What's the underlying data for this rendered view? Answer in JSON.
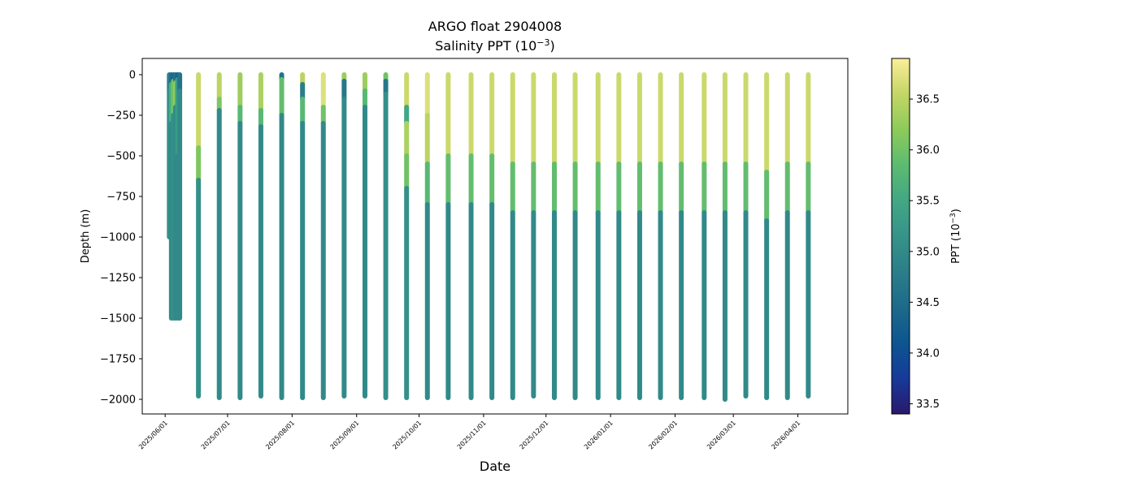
{
  "chart_data": {
    "type": "scatter",
    "title": "ARGO float 2904008",
    "subtitle_main": "Salinity PPT (10",
    "subtitle_exp": "−3",
    "subtitle_end": ")",
    "xlabel": "Date",
    "ylabel": "Depth (m)",
    "x_start": "2025-05-21",
    "x_end": "2026-04-25",
    "ylim": [
      -2090,
      100
    ],
    "x_ticks": [
      {
        "date": "2025-06-01",
        "label": "2025/06/01"
      },
      {
        "date": "2025-07-01",
        "label": "2025/07/01"
      },
      {
        "date": "2025-08-01",
        "label": "2025/08/01"
      },
      {
        "date": "2025-09-01",
        "label": "2025/09/01"
      },
      {
        "date": "2025-10-01",
        "label": "2025/10/01"
      },
      {
        "date": "2025-11-01",
        "label": "2025/11/01"
      },
      {
        "date": "2025-12-01",
        "label": "2025/12/01"
      },
      {
        "date": "2026-01-01",
        "label": "2026/01/01"
      },
      {
        "date": "2026-02-01",
        "label": "2026/02/01"
      },
      {
        "date": "2026-03-01",
        "label": "2026/03/01"
      },
      {
        "date": "2026-04-01",
        "label": "2026/04/01"
      }
    ],
    "y_ticks": [
      {
        "value": 0,
        "label": "0"
      },
      {
        "value": -250,
        "label": "−250"
      },
      {
        "value": -500,
        "label": "−500"
      },
      {
        "value": -750,
        "label": "−750"
      },
      {
        "value": -1000,
        "label": "−1000"
      },
      {
        "value": -1250,
        "label": "−1250"
      },
      {
        "value": -1500,
        "label": "−1500"
      },
      {
        "value": -1750,
        "label": "−1750"
      },
      {
        "value": -2000,
        "label": "−2000"
      }
    ],
    "colorbar": {
      "colormap": "haline",
      "label_main": "PPT (10",
      "label_exp": "−3",
      "label_end": ")",
      "vmin": 33.4,
      "vmax": 36.9,
      "ticks": [
        {
          "value": 33.5,
          "label": "33.5"
        },
        {
          "value": 34.0,
          "label": "34.0"
        },
        {
          "value": 34.5,
          "label": "34.5"
        },
        {
          "value": 35.0,
          "label": "35.0"
        },
        {
          "value": 35.5,
          "label": "35.5"
        },
        {
          "value": 36.0,
          "label": "36.0"
        },
        {
          "value": 36.5,
          "label": "36.5"
        }
      ],
      "color_stops": [
        {
          "value": 0.0,
          "color": "#2a186c"
        },
        {
          "value": 0.1,
          "color": "#173a9a"
        },
        {
          "value": 0.2,
          "color": "#0d5590"
        },
        {
          "value": 0.3,
          "color": "#1d6a8a"
        },
        {
          "value": 0.4,
          "color": "#2b7e89"
        },
        {
          "value": 0.5,
          "color": "#369389"
        },
        {
          "value": 0.6,
          "color": "#42a784"
        },
        {
          "value": 0.7,
          "color": "#5cbb71"
        },
        {
          "value": 0.8,
          "color": "#8ccb5a"
        },
        {
          "value": 0.9,
          "color": "#c3d665"
        },
        {
          "value": 1.0,
          "color": "#fdee99"
        }
      ]
    },
    "profiles": [
      {
        "date": "2025-06-03",
        "max_depth": -1000,
        "segments": [
          {
            "top": 0,
            "bottom": -100,
            "value": 34.9
          },
          {
            "top": -100,
            "bottom": -1000,
            "value": 35.1
          }
        ]
      },
      {
        "date": "2025-06-04",
        "max_depth": -1500,
        "segments": [
          {
            "top": 0,
            "bottom": -60,
            "value": 34.5
          },
          {
            "top": -60,
            "bottom": -300,
            "value": 35.6
          },
          {
            "top": -300,
            "bottom": -1500,
            "value": 35.0
          }
        ]
      },
      {
        "date": "2025-06-05",
        "max_depth": -1500,
        "segments": [
          {
            "top": 0,
            "bottom": -40,
            "value": 34.4
          },
          {
            "top": -40,
            "bottom": -250,
            "value": 36.0
          },
          {
            "top": -250,
            "bottom": -1500,
            "value": 35.1
          }
        ]
      },
      {
        "date": "2025-06-06",
        "max_depth": -1500,
        "segments": [
          {
            "top": 0,
            "bottom": -50,
            "value": 34.6
          },
          {
            "top": -50,
            "bottom": -200,
            "value": 36.2
          },
          {
            "top": -200,
            "bottom": -1500,
            "value": 35.0
          }
        ]
      },
      {
        "date": "2025-06-07",
        "max_depth": -1500,
        "segments": [
          {
            "top": 0,
            "bottom": -30,
            "value": 34.3
          },
          {
            "top": -30,
            "bottom": -500,
            "value": 35.3
          },
          {
            "top": -500,
            "bottom": -1500,
            "value": 35.0
          }
        ]
      },
      {
        "date": "2025-06-08",
        "max_depth": -1500,
        "segments": [
          {
            "top": 0,
            "bottom": -100,
            "value": 34.6
          },
          {
            "top": -100,
            "bottom": -1500,
            "value": 35.0
          }
        ]
      },
      {
        "date": "2025-06-17",
        "max_depth": -1980,
        "segments": [
          {
            "top": 0,
            "bottom": -450,
            "value": 36.6
          },
          {
            "top": -450,
            "bottom": -650,
            "value": 36.1
          },
          {
            "top": -650,
            "bottom": -1980,
            "value": 35.1
          }
        ]
      },
      {
        "date": "2025-06-27",
        "max_depth": -1990,
        "segments": [
          {
            "top": 0,
            "bottom": -150,
            "value": 36.5
          },
          {
            "top": -150,
            "bottom": -220,
            "value": 36.1
          },
          {
            "top": -220,
            "bottom": -1990,
            "value": 35.0
          }
        ]
      },
      {
        "date": "2025-07-07",
        "max_depth": -1990,
        "segments": [
          {
            "top": 0,
            "bottom": -200,
            "value": 36.3
          },
          {
            "top": -200,
            "bottom": -300,
            "value": 35.8
          },
          {
            "top": -300,
            "bottom": -1990,
            "value": 35.0
          }
        ]
      },
      {
        "date": "2025-07-17",
        "max_depth": -1980,
        "segments": [
          {
            "top": 0,
            "bottom": -220,
            "value": 36.4
          },
          {
            "top": -220,
            "bottom": -320,
            "value": 35.8
          },
          {
            "top": -320,
            "bottom": -1980,
            "value": 35.0
          }
        ]
      },
      {
        "date": "2025-07-27",
        "max_depth": -1990,
        "segments": [
          {
            "top": 0,
            "bottom": -30,
            "value": 34.6
          },
          {
            "top": -30,
            "bottom": -250,
            "value": 35.9
          },
          {
            "top": -250,
            "bottom": -1990,
            "value": 35.0
          }
        ]
      },
      {
        "date": "2025-08-06",
        "max_depth": -1990,
        "segments": [
          {
            "top": 0,
            "bottom": -60,
            "value": 36.5
          },
          {
            "top": -60,
            "bottom": -150,
            "value": 34.8
          },
          {
            "top": -150,
            "bottom": -300,
            "value": 35.8
          },
          {
            "top": -300,
            "bottom": -1990,
            "value": 35.0
          }
        ]
      },
      {
        "date": "2025-08-16",
        "max_depth": -1990,
        "segments": [
          {
            "top": 0,
            "bottom": -200,
            "value": 36.7
          },
          {
            "top": -200,
            "bottom": -300,
            "value": 36.0
          },
          {
            "top": -300,
            "bottom": -1990,
            "value": 35.0
          }
        ]
      },
      {
        "date": "2025-08-26",
        "max_depth": -1980,
        "segments": [
          {
            "top": 0,
            "bottom": -40,
            "value": 36.3
          },
          {
            "top": -40,
            "bottom": -150,
            "value": 34.7
          },
          {
            "top": -150,
            "bottom": -1980,
            "value": 35.0
          }
        ]
      },
      {
        "date": "2025-09-05",
        "max_depth": -1980,
        "segments": [
          {
            "top": 0,
            "bottom": -100,
            "value": 36.3
          },
          {
            "top": -100,
            "bottom": -200,
            "value": 35.8
          },
          {
            "top": -200,
            "bottom": -1980,
            "value": 35.0
          }
        ]
      },
      {
        "date": "2025-09-15",
        "max_depth": -1990,
        "segments": [
          {
            "top": 0,
            "bottom": -40,
            "value": 36.0
          },
          {
            "top": -40,
            "bottom": -120,
            "value": 34.7
          },
          {
            "top": -120,
            "bottom": -1990,
            "value": 35.1
          }
        ]
      },
      {
        "date": "2025-09-25",
        "max_depth": -1990,
        "segments": [
          {
            "top": 0,
            "bottom": -200,
            "value": 36.6
          },
          {
            "top": -200,
            "bottom": -300,
            "value": 35.5
          },
          {
            "top": -300,
            "bottom": -500,
            "value": 36.4
          },
          {
            "top": -500,
            "bottom": -700,
            "value": 36.0
          },
          {
            "top": -700,
            "bottom": -1990,
            "value": 35.1
          }
        ]
      },
      {
        "date": "2025-10-05",
        "max_depth": -1990,
        "segments": [
          {
            "top": 0,
            "bottom": -250,
            "value": 36.7
          },
          {
            "top": -250,
            "bottom": -550,
            "value": 36.5
          },
          {
            "top": -550,
            "bottom": -800,
            "value": 35.8
          },
          {
            "top": -800,
            "bottom": -1990,
            "value": 35.0
          }
        ]
      },
      {
        "date": "2025-10-15",
        "max_depth": -1990,
        "segments": [
          {
            "top": 0,
            "bottom": -500,
            "value": 36.6
          },
          {
            "top": -500,
            "bottom": -800,
            "value": 35.9
          },
          {
            "top": -800,
            "bottom": -1990,
            "value": 35.0
          }
        ]
      },
      {
        "date": "2025-10-26",
        "max_depth": -1990,
        "segments": [
          {
            "top": 0,
            "bottom": -500,
            "value": 36.6
          },
          {
            "top": -500,
            "bottom": -800,
            "value": 35.9
          },
          {
            "top": -800,
            "bottom": -1990,
            "value": 35.0
          }
        ]
      },
      {
        "date": "2025-11-05",
        "max_depth": -1990,
        "segments": [
          {
            "top": 0,
            "bottom": -500,
            "value": 36.6
          },
          {
            "top": -500,
            "bottom": -800,
            "value": 35.9
          },
          {
            "top": -800,
            "bottom": -1990,
            "value": 35.0
          }
        ]
      },
      {
        "date": "2025-11-15",
        "max_depth": -1990,
        "segments": [
          {
            "top": 0,
            "bottom": -550,
            "value": 36.6
          },
          {
            "top": -550,
            "bottom": -850,
            "value": 35.9
          },
          {
            "top": -850,
            "bottom": -1990,
            "value": 35.0
          }
        ]
      },
      {
        "date": "2025-11-25",
        "max_depth": -1980,
        "segments": [
          {
            "top": 0,
            "bottom": -550,
            "value": 36.6
          },
          {
            "top": -550,
            "bottom": -850,
            "value": 35.9
          },
          {
            "top": -850,
            "bottom": -1980,
            "value": 35.0
          }
        ]
      },
      {
        "date": "2025-12-05",
        "max_depth": -1990,
        "segments": [
          {
            "top": 0,
            "bottom": -550,
            "value": 36.6
          },
          {
            "top": -550,
            "bottom": -850,
            "value": 35.9
          },
          {
            "top": -850,
            "bottom": -1990,
            "value": 35.0
          }
        ]
      },
      {
        "date": "2025-12-15",
        "max_depth": -1990,
        "segments": [
          {
            "top": 0,
            "bottom": -550,
            "value": 36.6
          },
          {
            "top": -550,
            "bottom": -850,
            "value": 35.9
          },
          {
            "top": -850,
            "bottom": -1990,
            "value": 35.0
          }
        ]
      },
      {
        "date": "2025-12-26",
        "max_depth": -1990,
        "segments": [
          {
            "top": 0,
            "bottom": -550,
            "value": 36.6
          },
          {
            "top": -550,
            "bottom": -850,
            "value": 35.9
          },
          {
            "top": -850,
            "bottom": -1990,
            "value": 35.0
          }
        ]
      },
      {
        "date": "2026-01-05",
        "max_depth": -1990,
        "segments": [
          {
            "top": 0,
            "bottom": -550,
            "value": 36.6
          },
          {
            "top": -550,
            "bottom": -850,
            "value": 35.9
          },
          {
            "top": -850,
            "bottom": -1990,
            "value": 35.0
          }
        ]
      },
      {
        "date": "2026-01-15",
        "max_depth": -1990,
        "segments": [
          {
            "top": 0,
            "bottom": -550,
            "value": 36.6
          },
          {
            "top": -550,
            "bottom": -850,
            "value": 35.9
          },
          {
            "top": -850,
            "bottom": -1990,
            "value": 35.0
          }
        ]
      },
      {
        "date": "2026-01-25",
        "max_depth": -1990,
        "segments": [
          {
            "top": 0,
            "bottom": -550,
            "value": 36.6
          },
          {
            "top": -550,
            "bottom": -850,
            "value": 35.9
          },
          {
            "top": -850,
            "bottom": -1990,
            "value": 35.0
          }
        ]
      },
      {
        "date": "2026-02-04",
        "max_depth": -1990,
        "segments": [
          {
            "top": 0,
            "bottom": -550,
            "value": 36.6
          },
          {
            "top": -550,
            "bottom": -850,
            "value": 35.9
          },
          {
            "top": -850,
            "bottom": -1990,
            "value": 35.0
          }
        ]
      },
      {
        "date": "2026-02-15",
        "max_depth": -1990,
        "segments": [
          {
            "top": 0,
            "bottom": -550,
            "value": 36.6
          },
          {
            "top": -550,
            "bottom": -850,
            "value": 35.9
          },
          {
            "top": -850,
            "bottom": -1990,
            "value": 35.0
          }
        ]
      },
      {
        "date": "2026-02-25",
        "max_depth": -2000,
        "segments": [
          {
            "top": 0,
            "bottom": -550,
            "value": 36.6
          },
          {
            "top": -550,
            "bottom": -850,
            "value": 35.9
          },
          {
            "top": -850,
            "bottom": -2000,
            "value": 35.0
          }
        ]
      },
      {
        "date": "2026-03-07",
        "max_depth": -1980,
        "segments": [
          {
            "top": 0,
            "bottom": -550,
            "value": 36.6
          },
          {
            "top": -550,
            "bottom": -850,
            "value": 35.9
          },
          {
            "top": -850,
            "bottom": -1980,
            "value": 35.0
          }
        ]
      },
      {
        "date": "2026-03-17",
        "max_depth": -1990,
        "segments": [
          {
            "top": 0,
            "bottom": -600,
            "value": 36.6
          },
          {
            "top": -600,
            "bottom": -900,
            "value": 35.9
          },
          {
            "top": -900,
            "bottom": -1990,
            "value": 35.0
          }
        ]
      },
      {
        "date": "2026-03-27",
        "max_depth": -1990,
        "segments": [
          {
            "top": 0,
            "bottom": -550,
            "value": 36.6
          },
          {
            "top": -550,
            "bottom": -850,
            "value": 35.9
          },
          {
            "top": -850,
            "bottom": -1990,
            "value": 35.0
          }
        ]
      },
      {
        "date": "2026-04-06",
        "max_depth": -1980,
        "segments": [
          {
            "top": 0,
            "bottom": -550,
            "value": 36.6
          },
          {
            "top": -550,
            "bottom": -850,
            "value": 35.9
          },
          {
            "top": -850,
            "bottom": -1980,
            "value": 35.0
          }
        ]
      }
    ]
  }
}
